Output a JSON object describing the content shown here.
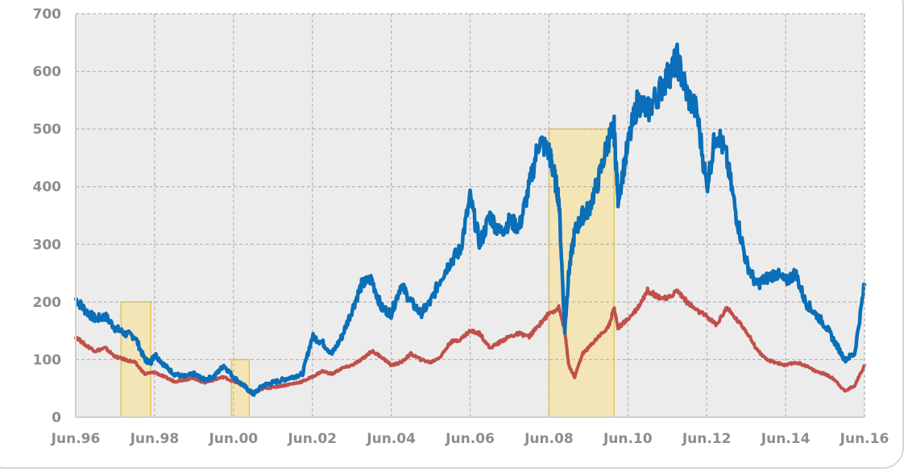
{
  "chart_data": {
    "type": "line",
    "title": "",
    "xlabel": "",
    "ylabel": "",
    "ylim": [
      0,
      700
    ],
    "xlim": [
      "Jun.96",
      "Jun.16"
    ],
    "grid": true,
    "legend": "none",
    "y_ticks": [
      "0",
      "100",
      "200",
      "300",
      "400",
      "500",
      "600",
      "700"
    ],
    "x_ticks": [
      "Jun.96",
      "Jun.98",
      "Jun.00",
      "Jun.02",
      "Jun.04",
      "Jun.06",
      "Jun.08",
      "Jun.10",
      "Jun.12",
      "Jun.14",
      "Jun.16"
    ],
    "colors": {
      "series_a": "#0a6fb8",
      "series_b": "#c0504a",
      "band_fill": "#f7e3a6",
      "band_stroke": "#e8c64d",
      "plot_bg": "#ececec",
      "grid": "#b5b5b5"
    },
    "highlight_bands": [
      {
        "start": 1997.15,
        "end": 1997.9,
        "top": 200
      },
      {
        "start": 1999.95,
        "end": 2000.4,
        "top": 100
      },
      {
        "start": 2008.0,
        "end": 2009.65,
        "top": 500
      }
    ],
    "series": [
      {
        "x": [
          1996.0,
          1996.25,
          1996.5,
          1996.75,
          1997.0,
          1997.25,
          1997.5,
          1997.75,
          1997.9,
          1998.0,
          1998.25,
          1998.5,
          1998.75,
          1999.0,
          1999.25,
          1999.5,
          1999.75,
          2000.0,
          2000.25,
          2000.5,
          2000.75,
          2001.0,
          2001.25,
          2001.5,
          2001.75,
          2002.0,
          2002.25,
          2002.5,
          2002.75,
          2003.0,
          2003.25,
          2003.5,
          2003.75,
          2004.0,
          2004.25,
          2004.5,
          2004.75,
          2005.0,
          2005.25,
          2005.5,
          2005.75,
          2006.0,
          2006.25,
          2006.5,
          2006.75,
          2007.0,
          2007.25,
          2007.5,
          2007.75,
          2008.0,
          2008.1,
          2008.25,
          2008.4,
          2008.5,
          2008.65,
          2008.85,
          2009.0,
          2009.25,
          2009.5,
          2009.65,
          2009.75,
          2010.0,
          2010.25,
          2010.5,
          2010.75,
          2011.0,
          2011.25,
          2011.5,
          2011.75,
          2012.0,
          2012.25,
          2012.5,
          2012.75,
          2013.0,
          2013.25,
          2013.5,
          2013.75,
          2014.0,
          2014.25,
          2014.5,
          2014.75,
          2015.0,
          2015.25,
          2015.5,
          2015.75,
          2016.0
        ],
        "values": [
          205,
          185,
          170,
          175,
          155,
          145,
          140,
          100,
          95,
          110,
          90,
          75,
          70,
          75,
          65,
          70,
          90,
          70,
          55,
          40,
          55,
          60,
          65,
          70,
          75,
          140,
          130,
          110,
          140,
          185,
          230,
          240,
          190,
          180,
          230,
          200,
          180,
          200,
          240,
          270,
          290,
          380,
          300,
          350,
          320,
          340,
          330,
          400,
          480,
          460,
          430,
          380,
          150,
          250,
          320,
          350,
          360,
          410,
          480,
          500,
          380,
          470,
          550,
          530,
          560,
          590,
          620,
          560,
          530,
          400,
          500,
          450,
          350,
          270,
          230,
          240,
          250,
          235,
          250,
          200,
          180,
          160,
          130,
          100,
          110,
          230
        ]
      },
      {
        "x": [
          1996.0,
          1996.25,
          1996.5,
          1996.75,
          1997.0,
          1997.25,
          1997.5,
          1997.75,
          1998.0,
          1998.25,
          1998.5,
          1998.75,
          1999.0,
          1999.25,
          1999.5,
          1999.75,
          2000.0,
          2000.25,
          2000.5,
          2000.75,
          2001.0,
          2001.25,
          2001.5,
          2001.75,
          2002.0,
          2002.25,
          2002.5,
          2002.75,
          2003.0,
          2003.25,
          2003.5,
          2003.75,
          2004.0,
          2004.25,
          2004.5,
          2004.75,
          2005.0,
          2005.25,
          2005.5,
          2005.75,
          2006.0,
          2006.25,
          2006.5,
          2006.75,
          2007.0,
          2007.25,
          2007.5,
          2007.75,
          2008.0,
          2008.25,
          2008.4,
          2008.5,
          2008.65,
          2008.85,
          2009.0,
          2009.25,
          2009.5,
          2009.65,
          2009.75,
          2010.0,
          2010.25,
          2010.5,
          2010.75,
          2011.0,
          2011.25,
          2011.5,
          2011.75,
          2012.0,
          2012.25,
          2012.5,
          2012.75,
          2013.0,
          2013.25,
          2013.5,
          2013.75,
          2014.0,
          2014.25,
          2014.5,
          2014.75,
          2015.0,
          2015.25,
          2015.5,
          2015.75,
          2016.0
        ],
        "values": [
          140,
          125,
          115,
          120,
          105,
          100,
          95,
          75,
          78,
          70,
          62,
          65,
          68,
          60,
          65,
          70,
          62,
          55,
          40,
          50,
          52,
          55,
          58,
          62,
          70,
          80,
          75,
          85,
          90,
          100,
          115,
          105,
          90,
          95,
          110,
          100,
          95,
          105,
          130,
          135,
          150,
          145,
          120,
          130,
          140,
          145,
          140,
          160,
          180,
          190,
          150,
          90,
          70,
          110,
          120,
          140,
          155,
          190,
          155,
          170,
          190,
          220,
          210,
          205,
          220,
          200,
          185,
          175,
          160,
          190,
          170,
          150,
          120,
          100,
          95,
          90,
          95,
          90,
          80,
          75,
          65,
          45,
          55,
          90
        ]
      }
    ]
  }
}
